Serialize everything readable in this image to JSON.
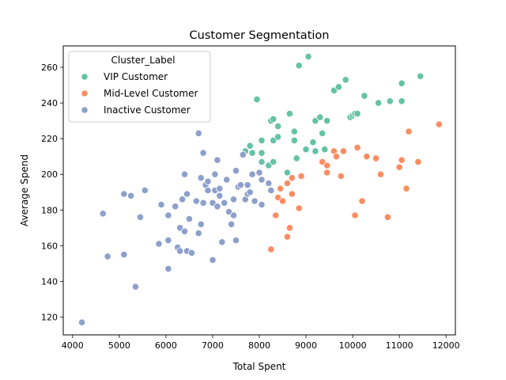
{
  "chart_data": {
    "type": "scatter",
    "title": "Customer Segmentation",
    "xlabel": "Total Spent",
    "ylabel": "Average Spend",
    "xlim": [
      3800,
      12200
    ],
    "ylim": [
      110,
      272
    ],
    "xticks": [
      4000,
      5000,
      6000,
      7000,
      8000,
      9000,
      10000,
      11000,
      12000
    ],
    "yticks": [
      120,
      140,
      160,
      180,
      200,
      220,
      240,
      260
    ],
    "grid": false,
    "legend": {
      "title": "Cluster_Label",
      "position": "top-left"
    },
    "series": [
      {
        "name": "VIP Customer",
        "color": "#66c2a5",
        "points": [
          [
            7700,
            213
          ],
          [
            7800,
            216
          ],
          [
            7850,
            212
          ],
          [
            7950,
            242
          ],
          [
            8050,
            219
          ],
          [
            8050,
            212
          ],
          [
            8050,
            207
          ],
          [
            8200,
            205
          ],
          [
            8250,
            230
          ],
          [
            8300,
            231
          ],
          [
            8300,
            219
          ],
          [
            8300,
            207
          ],
          [
            8400,
            227
          ],
          [
            8400,
            221
          ],
          [
            8650,
            234
          ],
          [
            8600,
            201
          ],
          [
            8750,
            224
          ],
          [
            8750,
            219
          ],
          [
            8800,
            209
          ],
          [
            8850,
            261
          ],
          [
            9000,
            214
          ],
          [
            9050,
            266
          ],
          [
            9150,
            218
          ],
          [
            9200,
            213
          ],
          [
            9200,
            230
          ],
          [
            9300,
            232
          ],
          [
            9350,
            223
          ],
          [
            9400,
            214
          ],
          [
            9450,
            230
          ],
          [
            9600,
            247
          ],
          [
            9700,
            249
          ],
          [
            9850,
            253
          ],
          [
            9950,
            232
          ],
          [
            10000,
            233
          ],
          [
            10050,
            234
          ],
          [
            10100,
            234
          ],
          [
            10250,
            244
          ],
          [
            10550,
            240
          ],
          [
            10800,
            241
          ],
          [
            11050,
            251
          ],
          [
            11050,
            241
          ],
          [
            11450,
            255
          ]
        ]
      },
      {
        "name": "Mid-Level Customer",
        "color": "#fc8d62",
        "points": [
          [
            8250,
            158
          ],
          [
            8350,
            177
          ],
          [
            8400,
            187
          ],
          [
            8450,
            192
          ],
          [
            8500,
            185
          ],
          [
            8600,
            165
          ],
          [
            8600,
            195
          ],
          [
            8650,
            170
          ],
          [
            8700,
            189
          ],
          [
            8700,
            198
          ],
          [
            8850,
            181
          ],
          [
            8900,
            199
          ],
          [
            9350,
            207
          ],
          [
            9450,
            201
          ],
          [
            9450,
            205
          ],
          [
            9600,
            213
          ],
          [
            9650,
            210
          ],
          [
            9750,
            199
          ],
          [
            9800,
            213
          ],
          [
            10050,
            177
          ],
          [
            10100,
            215
          ],
          [
            10200,
            185
          ],
          [
            10300,
            210
          ],
          [
            10500,
            209
          ],
          [
            10600,
            200
          ],
          [
            10750,
            176
          ],
          [
            11000,
            204
          ],
          [
            11050,
            208
          ],
          [
            11150,
            192
          ],
          [
            11200,
            224
          ],
          [
            11400,
            207
          ],
          [
            11850,
            228
          ]
        ]
      },
      {
        "name": "Inactive Customer",
        "color": "#8da0cb",
        "points": [
          [
            4200,
            117
          ],
          [
            4650,
            178
          ],
          [
            4750,
            154
          ],
          [
            5100,
            189
          ],
          [
            5100,
            155
          ],
          [
            5250,
            188
          ],
          [
            5350,
            137
          ],
          [
            5450,
            176
          ],
          [
            5550,
            191
          ],
          [
            5850,
            161
          ],
          [
            5900,
            183
          ],
          [
            6050,
            177
          ],
          [
            6050,
            163
          ],
          [
            6050,
            147
          ],
          [
            6200,
            182
          ],
          [
            6250,
            159
          ],
          [
            6300,
            157
          ],
          [
            6300,
            170
          ],
          [
            6350,
            186
          ],
          [
            6400,
            168
          ],
          [
            6400,
            200
          ],
          [
            6450,
            189
          ],
          [
            6450,
            157
          ],
          [
            6500,
            175
          ],
          [
            6550,
            156
          ],
          [
            6650,
            185
          ],
          [
            6700,
            223
          ],
          [
            6700,
            167
          ],
          [
            6750,
            172
          ],
          [
            6750,
            198
          ],
          [
            6800,
            212
          ],
          [
            6800,
            184
          ],
          [
            6850,
            194
          ],
          [
            6900,
            196
          ],
          [
            6900,
            191
          ],
          [
            7000,
            184
          ],
          [
            7000,
            152
          ],
          [
            7050,
            200
          ],
          [
            7050,
            191
          ],
          [
            7100,
            208
          ],
          [
            7100,
            182
          ],
          [
            7150,
            192
          ],
          [
            7150,
            188
          ],
          [
            7200,
            162
          ],
          [
            7250,
            184
          ],
          [
            7300,
            197
          ],
          [
            7350,
            179
          ],
          [
            7400,
            172
          ],
          [
            7450,
            177
          ],
          [
            7450,
            186
          ],
          [
            7500,
            163
          ],
          [
            7500,
            202
          ],
          [
            7550,
            193
          ],
          [
            7600,
            194
          ],
          [
            7650,
            211
          ],
          [
            7700,
            186
          ],
          [
            7750,
            189
          ],
          [
            7750,
            194
          ],
          [
            7800,
            190
          ],
          [
            7850,
            200
          ],
          [
            7900,
            185
          ],
          [
            8000,
            201
          ],
          [
            8050,
            197
          ],
          [
            8050,
            183
          ],
          [
            8200,
            195
          ],
          [
            8250,
            191
          ]
        ]
      }
    ]
  }
}
